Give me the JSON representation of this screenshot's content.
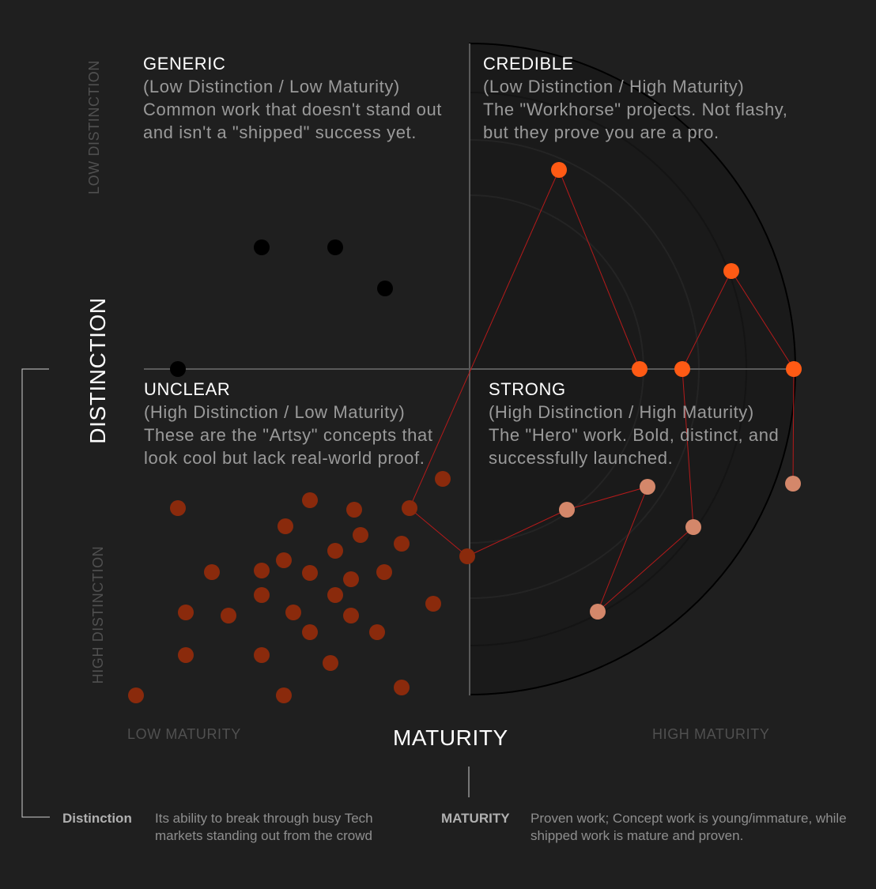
{
  "quadrants": {
    "generic": {
      "title": "GENERIC",
      "subtitle": "(Low Distinction / Low Maturity)",
      "description": "Common work that doesn't stand out and isn't a \"shipped\" success yet."
    },
    "credible": {
      "title": "CREDIBLE",
      "subtitle": "(Low Distinction / High Maturity)",
      "description": "The \"Workhorse\" projects. Not flashy, but they prove you are a pro."
    },
    "unclear": {
      "title": "UNCLEAR",
      "subtitle": "(High Distinction / Low Maturity)",
      "description": "These are the \"Artsy\" concepts that look cool but lack real-world proof."
    },
    "strong": {
      "title": "STRONG",
      "subtitle": "(High Distinction / High Maturity)",
      "description": "The \"Hero\" work. Bold, distinct, and successfully launched."
    }
  },
  "axes": {
    "y_title": "DISTINCTION",
    "y_low": "LOW DISTINCTION",
    "y_high": "HIGH DISTINCTION",
    "x_title": "MATURITY",
    "x_low": "LOW MATURITY",
    "x_high": "HIGH MATURITY"
  },
  "legend": {
    "distinction_label": "Distinction",
    "distinction_text": "Its ability to break through busy Tech markets standing out from the crowd",
    "maturity_label": "MATURITY",
    "maturity_text": "Proven work; Concept work is young/immature, while shipped work is mature and proven."
  },
  "colors": {
    "background": "#1f1f1f",
    "generic_dot": "#000000",
    "unclear_dot": "#8a2a0c",
    "credible_dot": "#ff5a14",
    "strong_dot": "#d4876a",
    "link_line": "#b51a1a",
    "axis": "#5a5a5a",
    "rings": [
      "#000000",
      "#141414",
      "#242424"
    ]
  }
}
